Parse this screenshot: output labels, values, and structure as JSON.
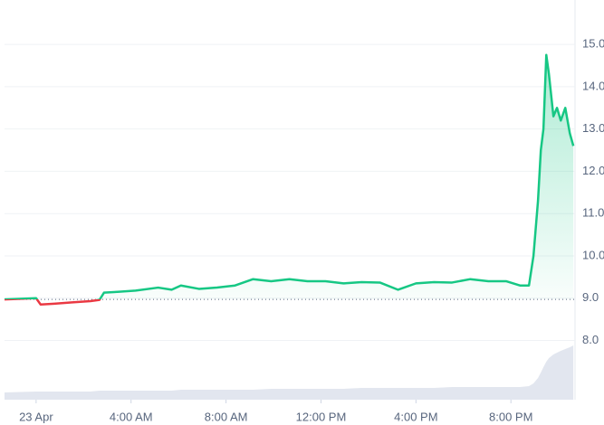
{
  "chart_data": {
    "type": "line",
    "x": [
      -1.33,
      0,
      0.19,
      0.76,
      1.52,
      2.29,
      2.67,
      2.86,
      3.43,
      4.19,
      5.14,
      5.71,
      6.1,
      6.86,
      7.62,
      8.38,
      9.14,
      9.9,
      10.67,
      11.43,
      12.19,
      12.95,
      13.71,
      14.48,
      15.24,
      16.0,
      16.76,
      17.52,
      18.29,
      19.05,
      19.81,
      20.38,
      20.76,
      20.95,
      21.14,
      21.26,
      21.37,
      21.49,
      21.6,
      21.79,
      21.94,
      22.1,
      22.29,
      22.48,
      22.63
    ],
    "series": [
      {
        "color": "#16c784",
        "below_color": "#ea3943",
        "values": [
          8.97,
          9.0,
          8.85,
          8.87,
          8.9,
          8.93,
          8.96,
          9.13,
          9.15,
          9.18,
          9.25,
          9.2,
          9.3,
          9.22,
          9.25,
          9.3,
          9.45,
          9.4,
          9.45,
          9.4,
          9.4,
          9.35,
          9.38,
          9.37,
          9.2,
          9.35,
          9.38,
          9.37,
          9.45,
          9.4,
          9.4,
          9.3,
          9.3,
          10.0,
          11.3,
          12.5,
          13.0,
          14.75,
          14.3,
          13.3,
          13.5,
          13.2,
          13.5,
          12.9,
          12.6
        ]
      }
    ],
    "volume": {
      "color": "#cfd6e4",
      "values": [
        8,
        9,
        9,
        9,
        9,
        9,
        10,
        10,
        10,
        10,
        10,
        10,
        11,
        11,
        11,
        11,
        11,
        12,
        12,
        12,
        12,
        12,
        13,
        13,
        13,
        13,
        13,
        14,
        14,
        14,
        14,
        14,
        15,
        18,
        24,
        30,
        36,
        42,
        46,
        50,
        52,
        54,
        56,
        58,
        60
      ]
    },
    "volume_lim": [
      0,
      100
    ],
    "baseline": 8.97,
    "xlim": [
      -1.33,
      22.7
    ],
    "xticks": [
      {
        "value": 0,
        "label": "23 Apr"
      },
      {
        "value": 4,
        "label": "4:00 AM"
      },
      {
        "value": 8,
        "label": "8:00 AM"
      },
      {
        "value": 12,
        "label": "12:00 PM"
      },
      {
        "value": 16,
        "label": "4:00 PM"
      },
      {
        "value": 20,
        "label": "8:00 PM"
      }
    ],
    "ylim": [
      6.6,
      16.05
    ],
    "yticks": [
      {
        "value": 8,
        "label": "8.0"
      },
      {
        "value": 9,
        "label": "9.0"
      },
      {
        "value": 10,
        "label": "10.0"
      },
      {
        "value": 11,
        "label": "11.0"
      },
      {
        "value": 12,
        "label": "12.0"
      },
      {
        "value": 13,
        "label": "13.0"
      },
      {
        "value": 14,
        "label": "14.0"
      },
      {
        "value": 15,
        "label": "15.0"
      }
    ],
    "grid": true
  }
}
